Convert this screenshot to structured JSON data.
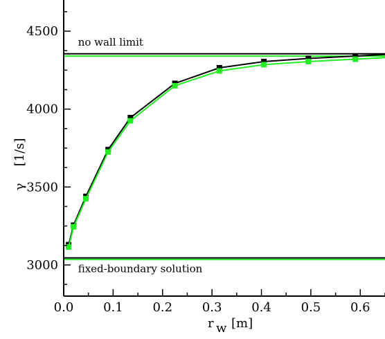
{
  "chart_data": {
    "type": "line",
    "xlabel": "r",
    "xlabel_sub": "w",
    "xlabel_unit": "[m]",
    "ylabel": "γ",
    "ylabel_unit": "[1/s]",
    "xlim": [
      0,
      0.65
    ],
    "ylim": [
      2800,
      4700
    ],
    "x_ticks": [
      0,
      0.1,
      0.2,
      0.3,
      0.4,
      0.5,
      0.6
    ],
    "x_tick_labels": [
      "0.0",
      "0.1",
      "0.2",
      "0.3",
      "0.4",
      "0.5",
      "0.6"
    ],
    "y_ticks": [
      3000,
      3500,
      4000,
      4500
    ],
    "y_tick_labels": [
      "3000",
      "3500",
      "4000",
      "4500"
    ],
    "grid": false,
    "series": [
      {
        "color": "#000000",
        "marker": "square",
        "x": [
          0.01,
          0.02,
          0.045,
          0.09,
          0.135,
          0.225,
          0.315,
          0.405,
          0.495,
          0.59,
          0.65
        ],
        "y": [
          3130,
          3255,
          3440,
          3740,
          3945,
          4165,
          4265,
          4305,
          4325,
          4340,
          4350
        ]
      },
      {
        "color": "#22ee22",
        "marker": "square",
        "x": [
          0.01,
          0.02,
          0.045,
          0.09,
          0.135,
          0.225,
          0.315,
          0.405,
          0.495,
          0.59,
          0.65
        ],
        "y": [
          3115,
          3245,
          3425,
          3725,
          3925,
          4150,
          4245,
          4285,
          4305,
          4320,
          4330
        ]
      }
    ],
    "reference_lines": [
      {
        "y": 4355,
        "color": "#000000"
      },
      {
        "y": 4340,
        "color": "#22ee22"
      },
      {
        "y": 3045,
        "color": "#000000"
      },
      {
        "y": 3035,
        "color": "#22ee22"
      }
    ],
    "annotations": [
      {
        "id": "no-wall",
        "text": "no wall limit",
        "x": 0.015,
        "y": 4430
      },
      {
        "id": "fixed-boundary",
        "text": "fixed-boundary solution",
        "x": 0.015,
        "y": 2975
      }
    ]
  }
}
